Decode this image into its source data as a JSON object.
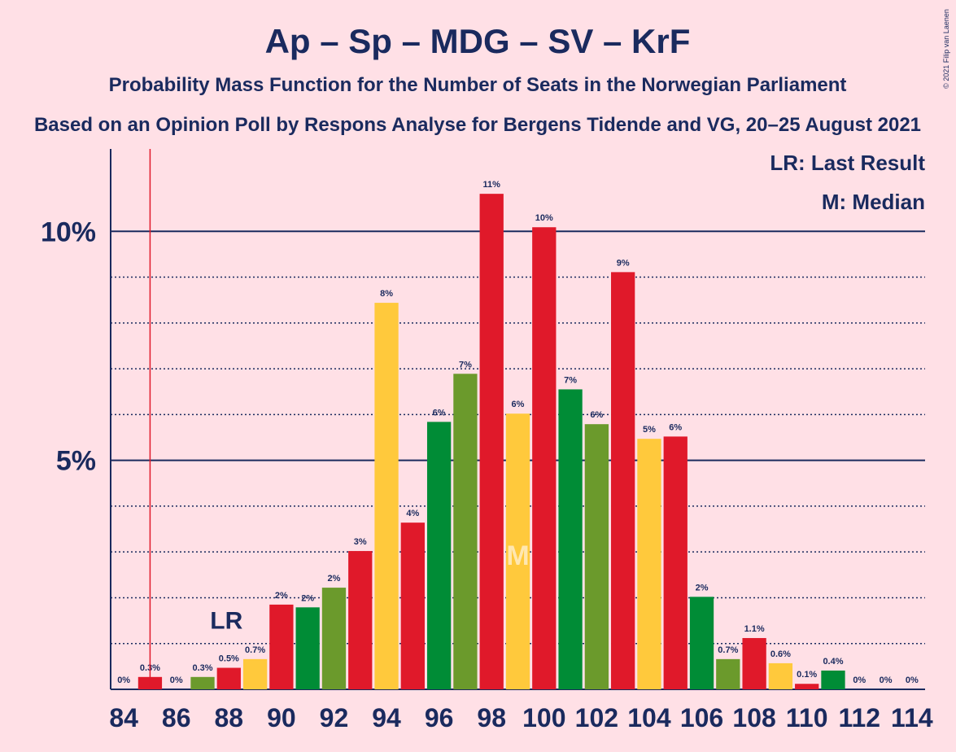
{
  "chart_data": {
    "type": "bar",
    "title": "Ap – Sp – MDG – SV – KrF",
    "subtitle": "Probability Mass Function for the Number of Seats in the Norwegian Parliament",
    "subtitle2": "Based on an Opinion Poll by Respons Analyse for Bergens Tidende and VG, 20–25 August 2021",
    "copyright": "© 2021 Filip van Laenen",
    "x": [
      84,
      85,
      86,
      87,
      88,
      89,
      90,
      91,
      92,
      93,
      94,
      95,
      96,
      97,
      98,
      99,
      100,
      101,
      102,
      103,
      104,
      105,
      106,
      107,
      108,
      109,
      110,
      111,
      112,
      113,
      114
    ],
    "values": [
      0,
      0.27,
      0,
      0.27,
      0.47,
      0.66,
      1.85,
      1.79,
      2.22,
      3.02,
      8.44,
      3.64,
      5.84,
      6.89,
      10.82,
      6.02,
      10.09,
      6.55,
      5.79,
      9.11,
      5.47,
      5.52,
      2.02,
      0.66,
      1.12,
      0.57,
      0.12,
      0.41,
      0,
      0,
      0
    ],
    "value_labels": [
      "0%",
      "0.3%",
      "0%",
      "0.3%",
      "0.5%",
      "0.7%",
      "2%",
      "2%",
      "2%",
      "3%",
      "8%",
      "4%",
      "6%",
      "7%",
      "11%",
      "6%",
      "10%",
      "7%",
      "6%",
      "9%",
      "5%",
      "6%",
      "2%",
      "0.7%",
      "1.1%",
      "0.6%",
      "0.1%",
      "0.4%",
      "0%",
      "0%",
      "0%"
    ],
    "colors": [
      "#ffc93c",
      "#e0192a",
      "#008c36",
      "#6b9a2c",
      "#e0192a",
      "#ffc93c",
      "#e0192a",
      "#008c36",
      "#6b9a2c",
      "#e0192a",
      "#ffc93c",
      "#e0192a",
      "#008c36",
      "#6b9a2c",
      "#e0192a",
      "#ffc93c",
      "#e0192a",
      "#008c36",
      "#6b9a2c",
      "#e0192a",
      "#ffc93c",
      "#e0192a",
      "#008c36",
      "#6b9a2c",
      "#e0192a",
      "#ffc93c",
      "#e0192a",
      "#008c36",
      "#6b9a2c",
      "#e0192a",
      "#ffc93c"
    ],
    "xlim": [
      83.5,
      114.5
    ],
    "xticks": [
      84,
      86,
      88,
      90,
      92,
      94,
      96,
      98,
      100,
      102,
      104,
      106,
      108,
      110,
      112,
      114
    ],
    "ylim": [
      0,
      11.8
    ],
    "yticks": [
      {
        "value": 5,
        "label": "5%"
      },
      {
        "value": 10,
        "label": "10%"
      }
    ],
    "minor_yticks": [
      1,
      2,
      3,
      4,
      6,
      7,
      8,
      9
    ],
    "last_result": 85,
    "last_result_label": "LR",
    "median": 99,
    "median_label": "M",
    "legend": [
      "LR: Last Result",
      "M: Median"
    ]
  }
}
